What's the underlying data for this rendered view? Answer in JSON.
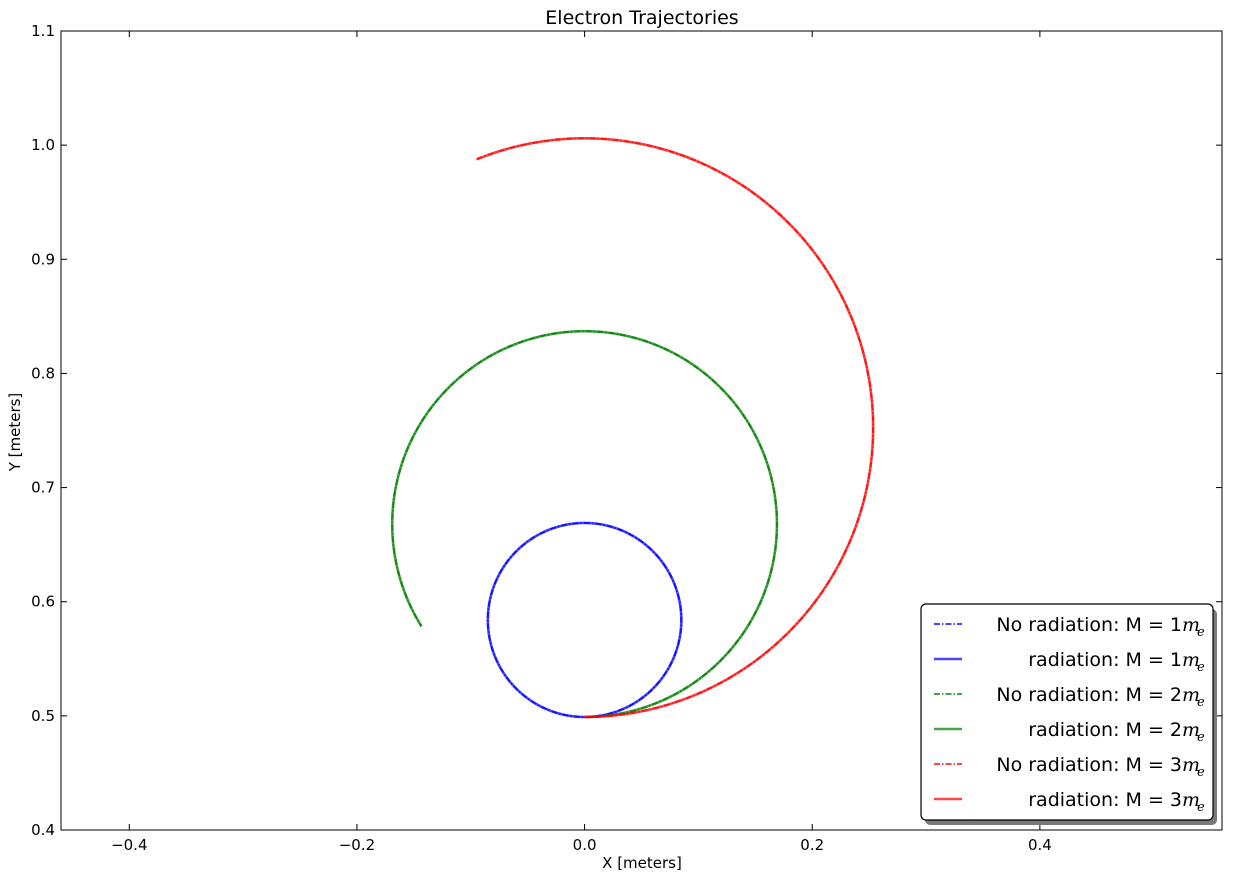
{
  "chart_data": {
    "type": "line",
    "title": "Electron Trajectories",
    "xlabel": "X [meters]",
    "ylabel": "Y [meters]",
    "xlim": [
      -0.46,
      0.56
    ],
    "ylim": [
      0.4,
      1.1
    ],
    "x_ticks": [
      -0.4,
      -0.2,
      0.0,
      0.2,
      0.4
    ],
    "y_ticks": [
      0.4,
      0.5,
      0.6,
      0.7,
      0.8,
      0.9,
      1.0,
      1.1
    ],
    "x_tick_labels": [
      "−0.4",
      "−0.2",
      "0.0",
      "0.2",
      "0.4"
    ],
    "y_tick_labels": [
      "0.4",
      "0.5",
      "0.6",
      "0.7",
      "0.8",
      "0.9",
      "1.0",
      "1.1"
    ],
    "grid": false,
    "legend_position": "bottom-right",
    "series": [
      {
        "name": "No radiation: M = 1m_e",
        "legend_label": "No radiation: M = 1",
        "color": "#0000ff",
        "linestyle": "dashdot",
        "center": [
          0.0,
          0.584
        ],
        "radius": 0.085,
        "start_angle_deg": -90,
        "end_angle_deg": 270,
        "radiation": false
      },
      {
        "name": "radiation: M = 1m_e",
        "legend_label": "radiation: M = 1",
        "color": "#0000ff",
        "linestyle": "solid",
        "center": [
          0.0,
          0.584
        ],
        "radius": 0.085,
        "start_angle_deg": -90,
        "end_angle_deg": 270,
        "radiation": true
      },
      {
        "name": "No radiation: M = 2m_e",
        "legend_label": "No radiation: M = 2",
        "color": "#008000",
        "linestyle": "dashdot",
        "center": [
          0.0,
          0.668
        ],
        "radius": 0.169,
        "start_angle_deg": -90,
        "end_angle_deg": 212,
        "radiation": false
      },
      {
        "name": "radiation: M = 2m_e",
        "legend_label": "radiation: M = 2",
        "color": "#008000",
        "linestyle": "solid",
        "center": [
          0.0,
          0.668
        ],
        "radius": 0.169,
        "start_angle_deg": -90,
        "end_angle_deg": 212,
        "radiation": true
      },
      {
        "name": "No radiation: M = 3m_e",
        "legend_label": "No radiation: M = 3",
        "color": "#ff0000",
        "linestyle": "dashdot",
        "center": [
          0.0,
          0.7525
        ],
        "radius": 0.2535,
        "start_angle_deg": -90,
        "end_angle_deg": 112,
        "radiation": false
      },
      {
        "name": "radiation: M = 3m_e",
        "legend_label": "radiation: M = 3",
        "color": "#ff0000",
        "linestyle": "solid",
        "center": [
          0.0,
          0.7525
        ],
        "radius": 0.2535,
        "start_angle_deg": -90,
        "end_angle_deg": 112,
        "radiation": true
      }
    ],
    "legend_mass_symbol": "m",
    "legend_mass_subscript": "e"
  }
}
